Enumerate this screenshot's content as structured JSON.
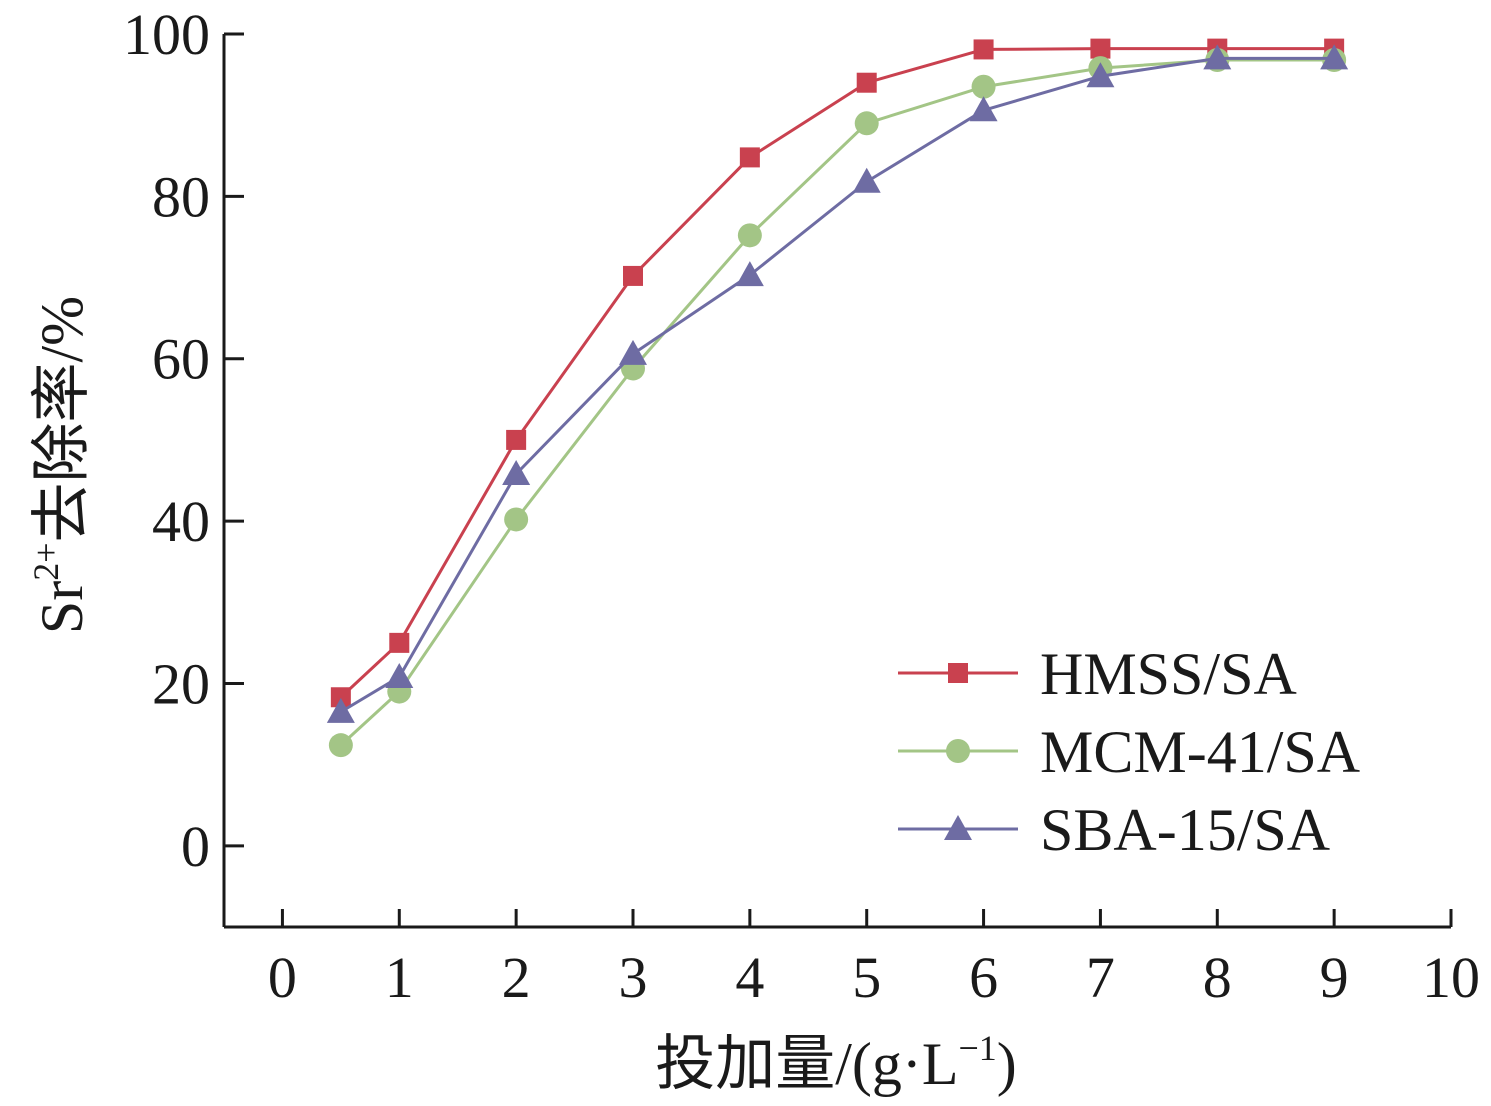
{
  "chart_data": {
    "type": "line",
    "title": "",
    "xlabel": "投加量/(g·L⁻¹)",
    "xlabel_parts": {
      "main": "投加量/(g·L",
      "sup": "−1",
      "tail": ")"
    },
    "ylabel": "Sr²⁺去除率/%",
    "ylabel_parts": {
      "base": "Sr",
      "sup": "2+",
      "tail": "去除率/%"
    },
    "xlim": [
      -0.5,
      10
    ],
    "ylim": [
      -10,
      100
    ],
    "xticks": [
      0,
      1,
      2,
      3,
      4,
      5,
      6,
      7,
      8,
      9,
      10
    ],
    "yticks": [
      0,
      20,
      40,
      60,
      80,
      100
    ],
    "grid": false,
    "legend_position": "bottom-right",
    "series": [
      {
        "name": "HMSS/SA",
        "color": "#c9414f",
        "marker": "square",
        "x": [
          0.5,
          1,
          2,
          3,
          4,
          5,
          6,
          7,
          8,
          9
        ],
        "values": [
          18.3,
          25.0,
          50.0,
          70.2,
          84.8,
          94.0,
          98.1,
          98.2,
          98.2,
          98.2
        ]
      },
      {
        "name": "MCM-41/SA",
        "color": "#a3c586",
        "marker": "circle",
        "x": [
          0.5,
          1,
          2,
          3,
          4,
          5,
          6,
          7,
          8,
          9
        ],
        "values": [
          12.4,
          19.0,
          40.2,
          58.8,
          75.2,
          89.0,
          93.5,
          95.8,
          96.8,
          96.8
        ]
      },
      {
        "name": "SBA-15/SA",
        "color": "#6e6ca3",
        "marker": "triangle",
        "x": [
          0.5,
          1,
          2,
          3,
          4,
          5,
          6,
          7,
          8,
          9
        ],
        "values": [
          16.5,
          20.8,
          45.8,
          60.6,
          70.3,
          81.8,
          90.6,
          94.8,
          97.0,
          97.0
        ]
      }
    ]
  }
}
